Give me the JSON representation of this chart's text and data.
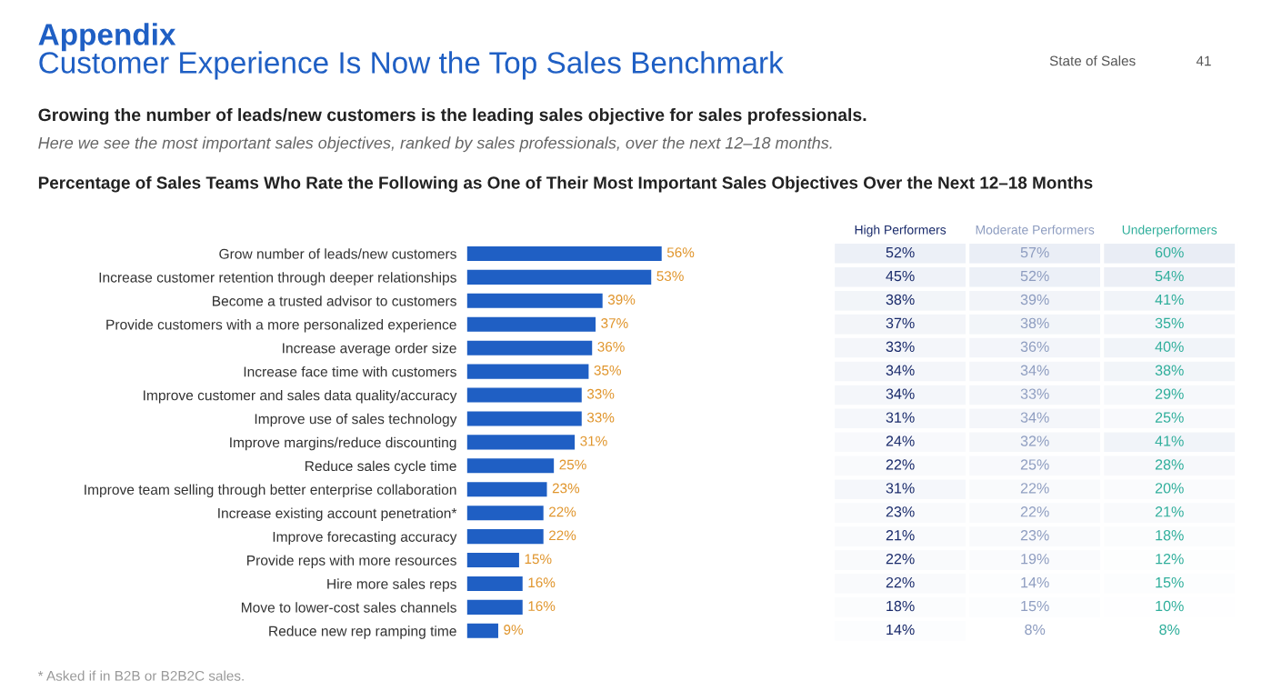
{
  "chart_data": [
    {
      "type": "other",
      "title": "Customer Experience Is Now the Top Sales Benchmark",
      "subtitle": "Growing the number of leads/new customers is the leading sales objective for sales professionals.",
      "annotations": [
        "Appendix",
        "State of Sales",
        "41",
        "Here we see the most important sales objectives, ranked by sales professionals, over the next 12–18 months.",
        "* Asked if in B2B or B2B2C sales."
      ]
    },
    {
      "type": "bar",
      "orientation": "horizontal",
      "title": "Percentage of Sales Teams Who Rate the Following as One of Their Most Important Sales Objectives Over the Next 12–18 Months",
      "categories": [
        "Grow number of leads/new customers",
        "Increase customer retention through deeper relationships",
        "Become a trusted advisor to customers",
        "Provide customers with a more personalized experience",
        "Increase average order size",
        "Increase face time with customers",
        "Improve customer and sales data quality/accuracy",
        "Improve use of sales technology",
        "Improve margins/reduce discounting",
        "Reduce sales cycle time",
        "Improve team selling through better enterprise collaboration",
        "Increase existing account penetration*",
        "Improve forecasting accuracy",
        "Provide reps with more resources",
        "Hire more sales reps",
        "Move to lower-cost sales channels",
        "Reduce new rep ramping time"
      ],
      "values": [
        56,
        53,
        39,
        37,
        36,
        35,
        33,
        33,
        31,
        25,
        23,
        22,
        22,
        15,
        16,
        16,
        9
      ],
      "value_labels": [
        "56%",
        "53%",
        "39%",
        "37%",
        "36%",
        "35%",
        "33%",
        "33%",
        "31%",
        "25%",
        "23%",
        "22%",
        "22%",
        "15%",
        "16%",
        "16%",
        "9%"
      ],
      "color": "#1f5fc4"
    },
    {
      "type": "heatmap",
      "categories": [
        "High Performers",
        "Moderate Performers",
        "Underperformers"
      ],
      "y_categories": [
        null,
        null,
        null,
        null,
        null,
        null,
        null,
        null,
        null,
        null,
        null,
        null,
        null,
        null,
        null,
        null,
        null
      ],
      "cells": [
        [
          52,
          57,
          60
        ],
        [
          45,
          52,
          54
        ],
        [
          38,
          39,
          41
        ],
        [
          37,
          38,
          35
        ],
        [
          33,
          36,
          40
        ],
        [
          34,
          34,
          38
        ],
        [
          34,
          33,
          29
        ],
        [
          31,
          34,
          25
        ],
        [
          24,
          32,
          41
        ],
        [
          22,
          25,
          28
        ],
        [
          31,
          22,
          20
        ],
        [
          23,
          22,
          21
        ],
        [
          21,
          23,
          18
        ],
        [
          22,
          19,
          12
        ],
        [
          22,
          14,
          15
        ],
        [
          18,
          15,
          10
        ],
        [
          14,
          8,
          8
        ]
      ],
      "cell_labels": [
        [
          "52%",
          "57%",
          "60%"
        ],
        [
          "45%",
          "52%",
          "54%"
        ],
        [
          "38%",
          "39%",
          "41%"
        ],
        [
          "37%",
          "38%",
          "35%"
        ],
        [
          "33%",
          "36%",
          "40%"
        ],
        [
          "34%",
          "34%",
          "38%"
        ],
        [
          "34%",
          "33%",
          "29%"
        ],
        [
          "31%",
          "34%",
          "25%"
        ],
        [
          "24%",
          "32%",
          "41%"
        ],
        [
          "22%",
          "25%",
          "28%"
        ],
        [
          "31%",
          "22%",
          "20%"
        ],
        [
          "23%",
          "22%",
          "21%"
        ],
        [
          "21%",
          "23%",
          "18%"
        ],
        [
          "22%",
          "19%",
          "12%"
        ],
        [
          "22%",
          "14%",
          "15%"
        ],
        [
          "18%",
          "15%",
          "10%"
        ],
        [
          "14%",
          "8%",
          "8%"
        ]
      ]
    }
  ]
}
